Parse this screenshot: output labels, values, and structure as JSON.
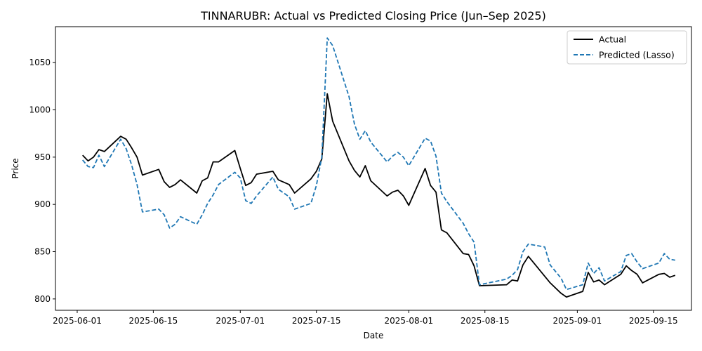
{
  "chart_data": {
    "type": "line",
    "title": "TINNARUBR: Actual vs Predicted Closing Price (Jun–Sep 2025)",
    "xlabel": "Date",
    "ylabel": "Price",
    "xlim": [
      "2025-05-28",
      "2025-09-22"
    ],
    "ylim": [
      788,
      1088
    ],
    "x_ticks": [
      "2025-06-01",
      "2025-06-15",
      "2025-07-01",
      "2025-07-15",
      "2025-08-01",
      "2025-08-15",
      "2025-09-01",
      "2025-09-15"
    ],
    "y_ticks": [
      800,
      850,
      900,
      950,
      1000,
      1050
    ],
    "grid": false,
    "legend": "top-right",
    "series": [
      {
        "name": "Actual",
        "color": "#000000",
        "style": "solid",
        "points": [
          [
            "2025-06-02",
            952
          ],
          [
            "2025-06-03",
            946
          ],
          [
            "2025-06-04",
            950
          ],
          [
            "2025-06-05",
            958
          ],
          [
            "2025-06-06",
            956
          ],
          [
            "2025-06-09",
            972
          ],
          [
            "2025-06-10",
            969
          ],
          [
            "2025-06-11",
            960
          ],
          [
            "2025-06-12",
            950
          ],
          [
            "2025-06-13",
            931
          ],
          [
            "2025-06-16",
            937
          ],
          [
            "2025-06-17",
            924
          ],
          [
            "2025-06-18",
            918
          ],
          [
            "2025-06-19",
            921
          ],
          [
            "2025-06-20",
            926
          ],
          [
            "2025-06-23",
            912
          ],
          [
            "2025-06-24",
            925
          ],
          [
            "2025-06-25",
            928
          ],
          [
            "2025-06-26",
            945
          ],
          [
            "2025-06-27",
            945
          ],
          [
            "2025-06-30",
            957
          ],
          [
            "2025-07-01",
            938
          ],
          [
            "2025-07-02",
            920
          ],
          [
            "2025-07-03",
            923
          ],
          [
            "2025-07-04",
            932
          ],
          [
            "2025-07-07",
            935
          ],
          [
            "2025-07-08",
            926
          ],
          [
            "2025-07-10",
            921
          ],
          [
            "2025-07-11",
            912
          ],
          [
            "2025-07-14",
            927
          ],
          [
            "2025-07-15",
            935
          ],
          [
            "2025-07-16",
            948
          ],
          [
            "2025-07-17",
            1017
          ],
          [
            "2025-07-18",
            988
          ],
          [
            "2025-07-21",
            946
          ],
          [
            "2025-07-22",
            936
          ],
          [
            "2025-07-23",
            929
          ],
          [
            "2025-07-24",
            941
          ],
          [
            "2025-07-25",
            925
          ],
          [
            "2025-07-28",
            909
          ],
          [
            "2025-07-29",
            913
          ],
          [
            "2025-07-30",
            915
          ],
          [
            "2025-07-31",
            909
          ],
          [
            "2025-08-01",
            899
          ],
          [
            "2025-08-04",
            938
          ],
          [
            "2025-08-05",
            920
          ],
          [
            "2025-08-06",
            913
          ],
          [
            "2025-08-07",
            873
          ],
          [
            "2025-08-08",
            870
          ],
          [
            "2025-08-11",
            848
          ],
          [
            "2025-08-12",
            847
          ],
          [
            "2025-08-13",
            835
          ],
          [
            "2025-08-14",
            814
          ],
          [
            "2025-08-19",
            815
          ],
          [
            "2025-08-20",
            820
          ],
          [
            "2025-08-21",
            819
          ],
          [
            "2025-08-22",
            836
          ],
          [
            "2025-08-23",
            845
          ],
          [
            "2025-08-27",
            817
          ],
          [
            "2025-08-29",
            806
          ],
          [
            "2025-08-30",
            802
          ],
          [
            "2025-09-02",
            808
          ],
          [
            "2025-09-03",
            828
          ],
          [
            "2025-09-04",
            818
          ],
          [
            "2025-09-05",
            820
          ],
          [
            "2025-09-06",
            815
          ],
          [
            "2025-09-09",
            826
          ],
          [
            "2025-09-10",
            835
          ],
          [
            "2025-09-11",
            830
          ],
          [
            "2025-09-12",
            826
          ],
          [
            "2025-09-13",
            817
          ],
          [
            "2025-09-16",
            826
          ],
          [
            "2025-09-17",
            827
          ],
          [
            "2025-09-18",
            823
          ],
          [
            "2025-09-19",
            825
          ]
        ]
      },
      {
        "name": "Predicted (Lasso)",
        "color": "#1f77b4",
        "style": "dashed",
        "points": [
          [
            "2025-06-02",
            947
          ],
          [
            "2025-06-03",
            940
          ],
          [
            "2025-06-04",
            939
          ],
          [
            "2025-06-05",
            952
          ],
          [
            "2025-06-06",
            940
          ],
          [
            "2025-06-09",
            969
          ],
          [
            "2025-06-10",
            959
          ],
          [
            "2025-06-11",
            942
          ],
          [
            "2025-06-12",
            921
          ],
          [
            "2025-06-13",
            892
          ],
          [
            "2025-06-16",
            895
          ],
          [
            "2025-06-17",
            889
          ],
          [
            "2025-06-18",
            875
          ],
          [
            "2025-06-19",
            879
          ],
          [
            "2025-06-20",
            887
          ],
          [
            "2025-06-23",
            879
          ],
          [
            "2025-06-24",
            889
          ],
          [
            "2025-06-25",
            901
          ],
          [
            "2025-06-26",
            910
          ],
          [
            "2025-06-27",
            921
          ],
          [
            "2025-06-30",
            934
          ],
          [
            "2025-07-01",
            928
          ],
          [
            "2025-07-02",
            904
          ],
          [
            "2025-07-03",
            901
          ],
          [
            "2025-07-04",
            909
          ],
          [
            "2025-07-07",
            929
          ],
          [
            "2025-07-08",
            916
          ],
          [
            "2025-07-10",
            908
          ],
          [
            "2025-07-11",
            895
          ],
          [
            "2025-07-14",
            901
          ],
          [
            "2025-07-15",
            920
          ],
          [
            "2025-07-16",
            950
          ],
          [
            "2025-07-17",
            1076
          ],
          [
            "2025-07-18",
            1068
          ],
          [
            "2025-07-21",
            1014
          ],
          [
            "2025-07-22",
            985
          ],
          [
            "2025-07-23",
            969
          ],
          [
            "2025-07-24",
            978
          ],
          [
            "2025-07-25",
            966
          ],
          [
            "2025-07-28",
            945
          ],
          [
            "2025-07-29",
            951
          ],
          [
            "2025-07-30",
            955
          ],
          [
            "2025-07-31",
            950
          ],
          [
            "2025-08-01",
            941
          ],
          [
            "2025-08-04",
            970
          ],
          [
            "2025-08-05",
            967
          ],
          [
            "2025-08-06",
            951
          ],
          [
            "2025-08-07",
            912
          ],
          [
            "2025-08-08",
            903
          ],
          [
            "2025-08-11",
            880
          ],
          [
            "2025-08-12",
            869
          ],
          [
            "2025-08-13",
            860
          ],
          [
            "2025-08-14",
            815
          ],
          [
            "2025-08-19",
            821
          ],
          [
            "2025-08-20",
            825
          ],
          [
            "2025-08-21",
            831
          ],
          [
            "2025-08-22",
            850
          ],
          [
            "2025-08-23",
            858
          ],
          [
            "2025-08-26",
            855
          ],
          [
            "2025-08-27",
            836
          ],
          [
            "2025-08-29",
            822
          ],
          [
            "2025-08-30",
            810
          ],
          [
            "2025-09-02",
            815
          ],
          [
            "2025-09-03",
            838
          ],
          [
            "2025-09-04",
            827
          ],
          [
            "2025-09-05",
            833
          ],
          [
            "2025-09-06",
            819
          ],
          [
            "2025-09-09",
            829
          ],
          [
            "2025-09-10",
            846
          ],
          [
            "2025-09-11",
            848
          ],
          [
            "2025-09-12",
            839
          ],
          [
            "2025-09-13",
            832
          ],
          [
            "2025-09-16",
            838
          ],
          [
            "2025-09-17",
            848
          ],
          [
            "2025-09-18",
            842
          ],
          [
            "2025-09-19",
            841
          ]
        ]
      }
    ]
  }
}
